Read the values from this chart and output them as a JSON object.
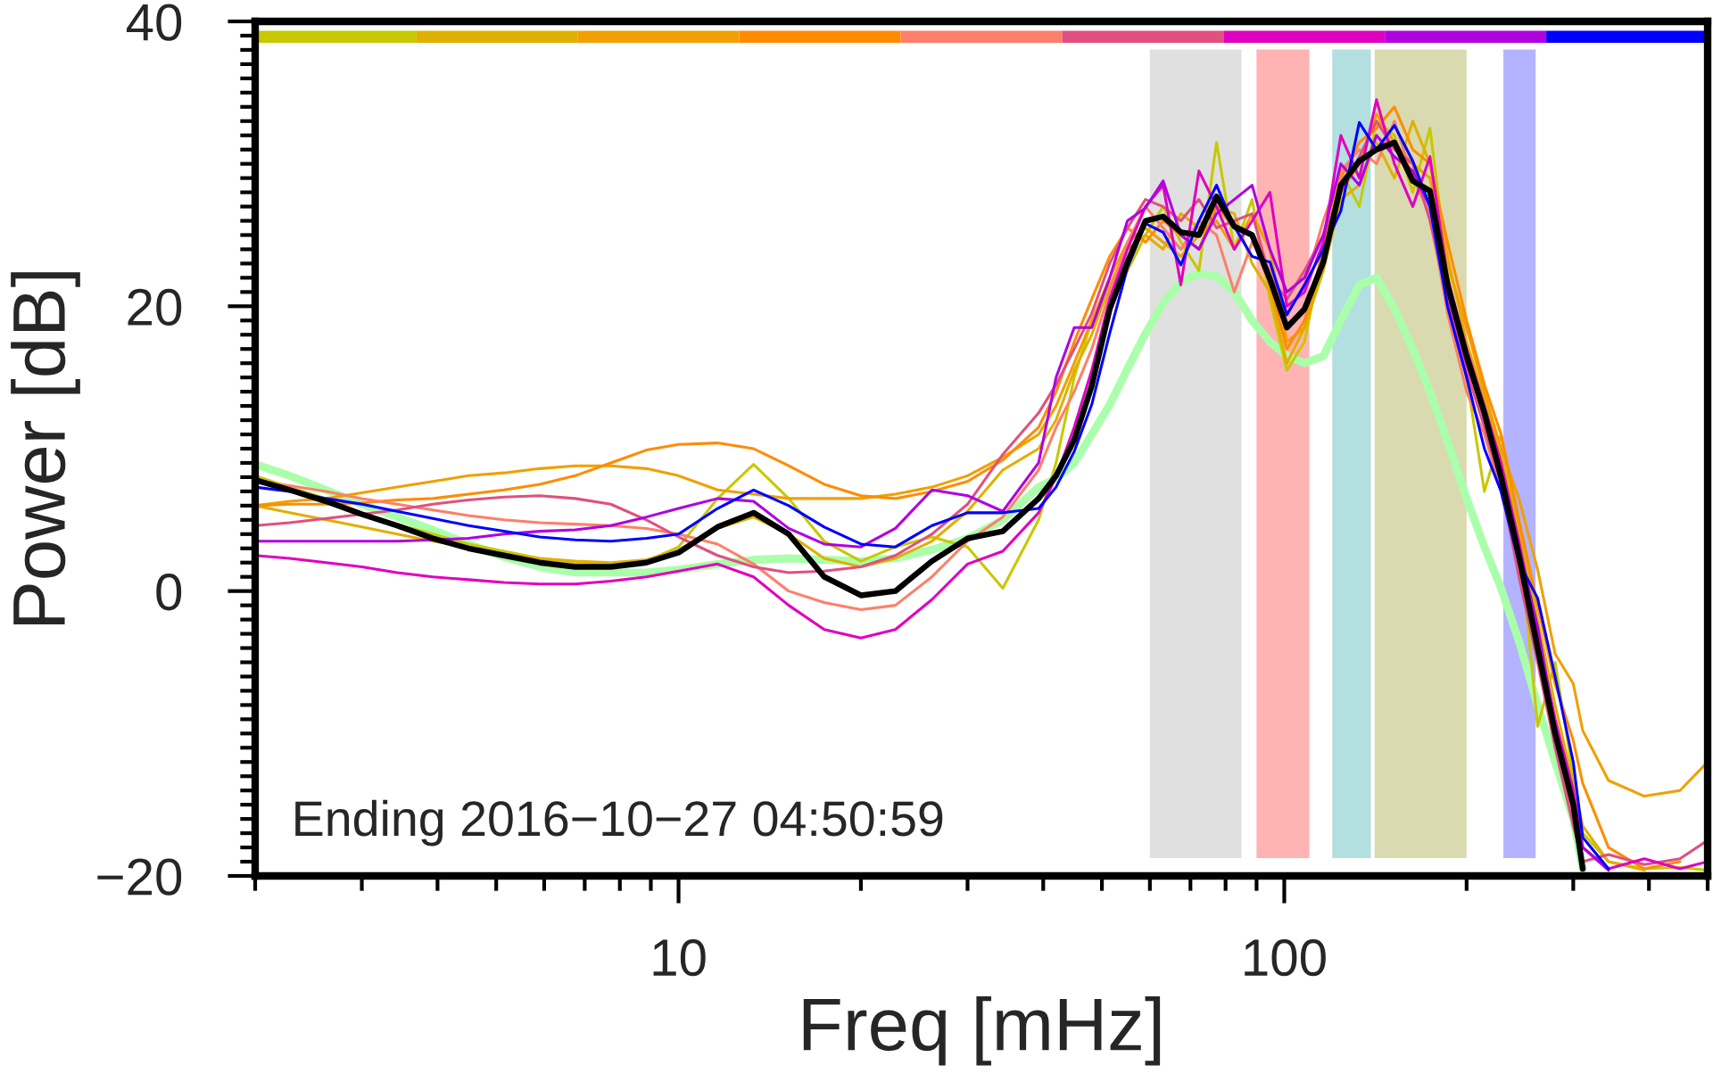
{
  "chart_data": {
    "type": "line",
    "xlabel": "Freq [mHz]",
    "ylabel": "Power [dB]",
    "annotations": [
      "Ending 2016−10−27 04:50:59"
    ],
    "log": "x",
    "xlim": [
      2,
      500
    ],
    "ylim": [
      -20,
      40
    ],
    "xticks": [
      {
        "value": 2,
        "label": null
      },
      {
        "value": 3,
        "label": null
      },
      {
        "value": 4,
        "label": null
      },
      {
        "value": 5,
        "label": null
      },
      {
        "value": 6,
        "label": null
      },
      {
        "value": 7,
        "label": null
      },
      {
        "value": 8,
        "label": null
      },
      {
        "value": 9,
        "label": null
      },
      10,
      {
        "value": 20,
        "label": null
      },
      {
        "value": 30,
        "label": null
      },
      {
        "value": 40,
        "label": null
      },
      {
        "value": 50,
        "label": null
      },
      {
        "value": 60,
        "label": null
      },
      {
        "value": 70,
        "label": null
      },
      {
        "value": 80,
        "label": null
      },
      {
        "value": 90,
        "label": null
      },
      100,
      {
        "value": 200,
        "label": null
      },
      {
        "value": 300,
        "label": null
      },
      {
        "value": 400,
        "label": null
      },
      {
        "value": 500,
        "label": null
      }
    ],
    "yticks": [
      {
        "value": -20,
        "label": "−20"
      },
      {
        "value": -19,
        "label": null
      },
      {
        "value": -18,
        "label": null
      },
      {
        "value": -17,
        "label": null
      },
      {
        "value": -16,
        "label": null
      },
      {
        "value": -15,
        "label": null
      },
      {
        "value": -14,
        "label": null
      },
      {
        "value": -13,
        "label": null
      },
      {
        "value": -12,
        "label": null
      },
      {
        "value": -11,
        "label": null
      },
      {
        "value": -10,
        "label": null
      },
      {
        "value": -9,
        "label": null
      },
      {
        "value": -8,
        "label": null
      },
      {
        "value": -7,
        "label": null
      },
      {
        "value": -6,
        "label": null
      },
      {
        "value": -5,
        "label": null
      },
      {
        "value": -4,
        "label": null
      },
      {
        "value": -3,
        "label": null
      },
      {
        "value": -2,
        "label": null
      },
      {
        "value": -1,
        "label": null
      },
      0,
      {
        "value": 1,
        "label": null
      },
      {
        "value": 2,
        "label": null
      },
      {
        "value": 3,
        "label": null
      },
      {
        "value": 4,
        "label": null
      },
      {
        "value": 5,
        "label": null
      },
      {
        "value": 6,
        "label": null
      },
      {
        "value": 7,
        "label": null
      },
      {
        "value": 8,
        "label": null
      },
      {
        "value": 9,
        "label": null
      },
      {
        "value": 10,
        "label": null
      },
      {
        "value": 11,
        "label": null
      },
      {
        "value": 12,
        "label": null
      },
      {
        "value": 13,
        "label": null
      },
      {
        "value": 14,
        "label": null
      },
      {
        "value": 15,
        "label": null
      },
      {
        "value": 16,
        "label": null
      },
      {
        "value": 17,
        "label": null
      },
      {
        "value": 18,
        "label": null
      },
      {
        "value": 19,
        "label": null
      },
      20,
      {
        "value": 21,
        "label": null
      },
      {
        "value": 22,
        "label": null
      },
      {
        "value": 23,
        "label": null
      },
      {
        "value": 24,
        "label": null
      },
      {
        "value": 25,
        "label": null
      },
      {
        "value": 26,
        "label": null
      },
      {
        "value": 27,
        "label": null
      },
      {
        "value": 28,
        "label": null
      },
      {
        "value": 29,
        "label": null
      },
      {
        "value": 30,
        "label": null
      },
      {
        "value": 31,
        "label": null
      },
      {
        "value": 32,
        "label": null
      },
      {
        "value": 33,
        "label": null
      },
      {
        "value": 34,
        "label": null
      },
      {
        "value": 35,
        "label": null
      },
      {
        "value": 36,
        "label": null
      },
      {
        "value": 37,
        "label": null
      },
      {
        "value": 38,
        "label": null
      },
      {
        "value": 39,
        "label": null
      },
      40
    ],
    "bands": [
      {
        "axis": "x",
        "from": 60,
        "to": 85,
        "color": "#e0e0e0"
      },
      {
        "axis": "x",
        "from": 90,
        "to": 110,
        "color": "#ffb3b3"
      },
      {
        "axis": "x",
        "from": 120,
        "to": 139,
        "color": "#b3dfe0"
      },
      {
        "axis": "x",
        "from": 141,
        "to": 200,
        "color": "#d9dab0"
      },
      {
        "axis": "x",
        "from": 230,
        "to": 260,
        "color": "#b3b3ff"
      }
    ],
    "x": [
      2.0,
      2.28,
      2.62,
      3.0,
      3.43,
      3.93,
      4.5,
      5.15,
      5.9,
      6.75,
      7.73,
      8.85,
      10,
      11.6,
      13.3,
      15.2,
      17.4,
      20,
      22.8,
      26.2,
      30,
      34.3,
      39.3,
      42,
      45,
      48.1,
      51.5,
      55.1,
      59,
      63.1,
      67.5,
      72.3,
      77.3,
      82.7,
      88.5,
      94.7,
      101,
      108,
      116,
      124,
      133,
      142,
      152,
      163,
      174,
      186,
      200,
      214,
      228,
      244,
      262,
      280,
      300,
      311,
      343,
      393,
      450,
      500
    ],
    "series": [
      {
        "color": "#aaffaa",
        "values": [
          8.9,
          8.1,
          7.1,
          6.1,
          5.2,
          4.3,
          3.3,
          2.4,
          1.7,
          1.3,
          1.3,
          1.3,
          1.5,
          1.9,
          2.2,
          2.3,
          2.2,
          2.1,
          2.3,
          2.9,
          3.7,
          5.0,
          7.3,
          7.9,
          9.0,
          11.0,
          13.1,
          15.6,
          18.1,
          20.2,
          21.7,
          22.3,
          22.1,
          21.0,
          19.0,
          17.5,
          16.5,
          16.0,
          16.5,
          19.0,
          21.5,
          22.0,
          19.8,
          17.0,
          14.0,
          10.5,
          6.5,
          3.1,
          0.2,
          -3.5,
          -8.0,
          -12.0,
          -16.0,
          -19.5,
          null,
          null,
          null,
          null
        ]
      },
      {
        "color": "#c8c800",
        "values": [
          8.1,
          7.3,
          6.5,
          5.5,
          4.7,
          4.0,
          3.3,
          2.8,
          2.3,
          2.0,
          1.9,
          2.1,
          3.1,
          6.5,
          8.9,
          6.5,
          3.5,
          2.1,
          3.1,
          3.8,
          3.1,
          0.2,
          5.0,
          9.0,
          15.0,
          19.0,
          21.0,
          22.5,
          25.0,
          27.0,
          24.5,
          22.5,
          31.5,
          24.0,
          27.5,
          20.5,
          15.5,
          17.5,
          24.0,
          29.5,
          27.0,
          33.0,
          32.0,
          28.0,
          32.5,
          22.5,
          15.0,
          7.0,
          11.0,
          4.0,
          -9.5,
          -5.0,
          -13.0,
          -17.0,
          -19.0,
          -19.5,
          -19.4,
          -19.6
        ]
      },
      {
        "color": "#e0b000",
        "values": [
          6.0,
          5.5,
          5.0,
          4.5,
          4.0,
          3.5,
          3.1,
          2.6,
          2.3,
          2.1,
          2.0,
          2.2,
          2.9,
          4.4,
          5.2,
          4.0,
          2.3,
          1.7,
          2.3,
          3.5,
          5.6,
          8.5,
          10.0,
          12.0,
          15.5,
          18.0,
          21.5,
          24.0,
          25.0,
          24.0,
          26.5,
          25.5,
          27.0,
          26.5,
          23.0,
          21.0,
          16.0,
          18.5,
          22.5,
          27.5,
          28.5,
          31.5,
          29.0,
          33.0,
          30.0,
          23.5,
          17.5,
          13.5,
          9.5,
          4.5,
          -2.0,
          -8.0,
          -13.5,
          -16.5,
          -19.0,
          -19.6,
          null,
          null
        ]
      },
      {
        "color": "#f0a000",
        "values": [
          6.0,
          6.3,
          6.5,
          6.9,
          7.3,
          7.7,
          8.1,
          8.3,
          8.6,
          8.8,
          8.8,
          8.6,
          8.1,
          7.1,
          6.8,
          6.5,
          6.5,
          6.5,
          6.8,
          7.3,
          8.1,
          9.4,
          11.0,
          13.0,
          16.0,
          19.0,
          22.0,
          24.5,
          25.5,
          24.5,
          23.5,
          25.0,
          26.0,
          24.0,
          26.5,
          24.0,
          17.5,
          18.5,
          23.5,
          28.0,
          30.0,
          33.5,
          31.5,
          30.0,
          29.0,
          23.0,
          18.5,
          14.0,
          10.0,
          6.5,
          1.5,
          -4.4,
          -6.5,
          -9.8,
          -13.3,
          -14.4,
          -14.0,
          -12.0
        ]
      },
      {
        "color": "#ff8c00",
        "values": [
          6.0,
          6.1,
          6.1,
          6.2,
          6.4,
          6.5,
          6.8,
          7.1,
          7.5,
          8.1,
          9.0,
          9.9,
          10.3,
          10.4,
          10.0,
          8.8,
          7.5,
          6.7,
          6.5,
          7.0,
          7.7,
          9.2,
          11.5,
          14.0,
          17.5,
          20.5,
          23.5,
          25.5,
          24.5,
          26.0,
          25.0,
          24.0,
          27.0,
          25.5,
          25.0,
          21.5,
          17.0,
          19.0,
          24.0,
          29.0,
          31.5,
          32.5,
          34.0,
          31.0,
          30.0,
          24.5,
          19.0,
          14.5,
          11.0,
          5.0,
          -1.0,
          -6.5,
          -10.5,
          -13.5,
          -18.0,
          -19.5,
          -19.0,
          null
        ]
      },
      {
        "color": "#ff7f6a",
        "values": [
          7.7,
          7.4,
          7.0,
          6.5,
          6.1,
          5.7,
          5.3,
          5.0,
          4.8,
          4.7,
          4.6,
          4.4,
          4.0,
          3.3,
          1.9,
          0.0,
          -0.8,
          -1.3,
          -1.0,
          1.0,
          3.5,
          5.2,
          8.5,
          11.5,
          14.0,
          17.0,
          21.0,
          24.5,
          27.0,
          25.5,
          24.0,
          26.0,
          25.0,
          21.0,
          24.5,
          22.5,
          19.5,
          21.5,
          26.0,
          29.5,
          31.0,
          30.0,
          33.0,
          29.0,
          26.5,
          19.5,
          14.0,
          11.0,
          7.0,
          1.5,
          -4.5,
          -10.5,
          -16.0,
          -19.5,
          null,
          null,
          null,
          null
        ]
      },
      {
        "color": "#e05080",
        "values": [
          4.6,
          4.8,
          5.1,
          5.4,
          5.7,
          6.1,
          6.4,
          6.6,
          6.7,
          6.5,
          6.1,
          5.0,
          3.8,
          2.5,
          1.7,
          1.3,
          1.4,
          1.7,
          2.5,
          4.0,
          6.1,
          9.6,
          12.5,
          14.5,
          17.0,
          19.5,
          23.0,
          25.5,
          27.5,
          27.0,
          26.0,
          27.5,
          25.5,
          26.0,
          26.5,
          22.0,
          20.5,
          22.5,
          25.0,
          28.0,
          30.5,
          33.0,
          31.0,
          30.0,
          26.0,
          20.5,
          15.5,
          11.5,
          7.5,
          1.0,
          -5.0,
          -11.0,
          -16.5,
          -19.0,
          -18.5,
          -19.2,
          -18.8,
          -17.5
        ]
      },
      {
        "color": "#e000c0",
        "values": [
          2.5,
          2.3,
          2.0,
          1.7,
          1.3,
          1.0,
          0.8,
          0.6,
          0.5,
          0.5,
          0.7,
          1.0,
          1.4,
          1.9,
          1.0,
          -1.0,
          -2.7,
          -3.3,
          -2.7,
          -0.6,
          1.9,
          2.8,
          5.5,
          8.0,
          11.5,
          15.5,
          20.5,
          24.0,
          27.0,
          28.5,
          21.5,
          29.5,
          27.0,
          24.0,
          26.0,
          28.0,
          20.0,
          21.0,
          24.5,
          32.0,
          29.0,
          34.5,
          30.0,
          27.0,
          30.5,
          22.0,
          17.0,
          13.0,
          9.0,
          3.5,
          -3.0,
          -9.0,
          -14.0,
          -18.0,
          -19.5,
          -18.8,
          -19.5,
          -19.0
        ]
      },
      {
        "color": "#b000e0",
        "values": [
          3.5,
          3.5,
          3.5,
          3.5,
          3.5,
          3.6,
          3.7,
          4.0,
          4.2,
          4.3,
          4.6,
          5.2,
          5.8,
          6.5,
          6.3,
          4.4,
          3.3,
          3.1,
          4.4,
          7.1,
          6.7,
          5.6,
          9.0,
          15.0,
          18.5,
          18.5,
          22.0,
          26.0,
          26.9,
          28.8,
          25.0,
          24.0,
          26.5,
          27.5,
          28.5,
          24.0,
          21.0,
          22.0,
          25.0,
          30.0,
          28.5,
          32.0,
          30.5,
          29.5,
          27.0,
          21.0,
          16.0,
          12.5,
          8.5,
          3.0,
          -2.5,
          -9.5,
          -14.5,
          -18.0,
          -19.6,
          null,
          null,
          null
        ]
      },
      {
        "color": "#0000ff",
        "values": [
          7.3,
          7.0,
          6.5,
          6.1,
          5.6,
          5.1,
          4.6,
          4.2,
          3.8,
          3.6,
          3.5,
          3.7,
          4.0,
          5.8,
          7.1,
          6.0,
          4.5,
          3.3,
          3.1,
          4.6,
          5.5,
          5.5,
          5.8,
          7.3,
          9.8,
          13.1,
          18.1,
          22.7,
          25.8,
          25.2,
          22.9,
          26.0,
          28.5,
          25.6,
          23.5,
          23.1,
          19.4,
          21.5,
          24.0,
          26.7,
          32.9,
          31.0,
          32.7,
          30.2,
          27.0,
          20.0,
          15.0,
          10.0,
          7.0,
          2.0,
          -0.5,
          -6.0,
          -12.0,
          -17.3,
          -19.5,
          null,
          null,
          null
        ]
      },
      {
        "color": "#000000",
        "values": [
          7.8,
          7.1,
          6.3,
          5.4,
          4.6,
          3.7,
          3.0,
          2.5,
          2.0,
          1.7,
          1.7,
          2.0,
          2.7,
          4.5,
          5.5,
          4.0,
          1.0,
          -0.3,
          0.0,
          2.1,
          3.7,
          4.2,
          6.5,
          8.1,
          10.6,
          14.4,
          19.8,
          23.1,
          26.0,
          26.3,
          25.2,
          25.0,
          27.7,
          25.6,
          25.0,
          21.9,
          18.5,
          19.8,
          23.1,
          28.5,
          30.2,
          31.0,
          31.5,
          28.8,
          28.1,
          21.5,
          16.5,
          12.5,
          8.0,
          2.5,
          -4.0,
          -10.0,
          -15.0,
          -19.5,
          null,
          null,
          null,
          null
        ]
      }
    ]
  }
}
